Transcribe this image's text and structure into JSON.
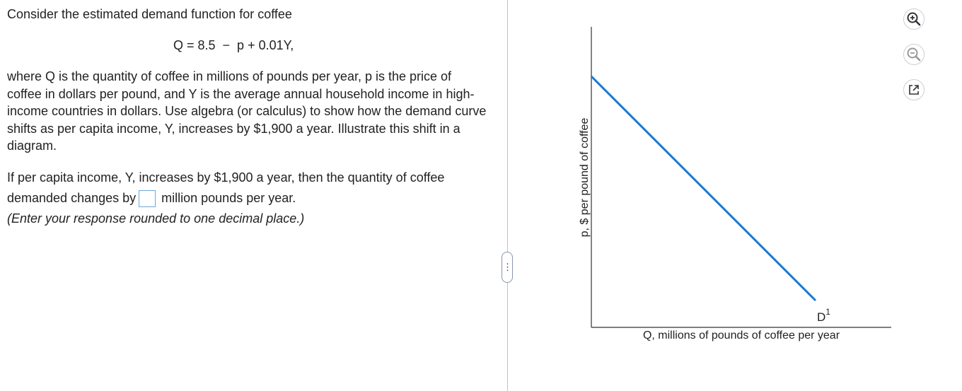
{
  "problem": {
    "intro": "Consider the estimated demand function for coffee",
    "equation": "Q = 8.5  −  p + 0.01Y,",
    "description": "where Q is the quantity of coffee in millions of pounds per year, p is the price of coffee in dollars per pound, and Y is the average annual household income in high-income countries in dollars.  Use algebra (or calculus) to show how the demand curve shifts as per capita income, Y, increases by $1,900 a year.  Illustrate this shift in a diagram.",
    "question_before": "If per capita income, Y, increases by $1,900 a year, then the quantity of coffee demanded changes by",
    "answer_value": "",
    "question_after": " million pounds per year.",
    "instruction": "(Enter your response rounded to one decimal place.)"
  },
  "panel": {
    "handle_label": "⋮"
  },
  "graph": {
    "y_axis_label": "p, $ per pound of coffee",
    "x_axis_label": "Q, millions of pounds of coffee per year",
    "curve_label": "D",
    "curve_label_sup": "1",
    "curve_color": "#1a78d0"
  },
  "tools": [
    {
      "icon": "zoom-in-icon"
    },
    {
      "icon": "zoom-out-icon"
    },
    {
      "icon": "open-external-icon"
    }
  ]
}
